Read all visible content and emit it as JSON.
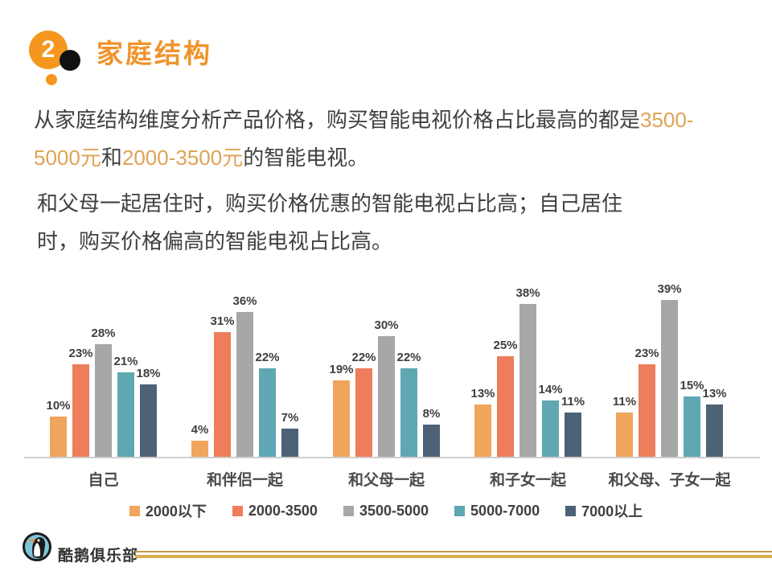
{
  "header": {
    "number": "2",
    "title": "家庭结构"
  },
  "paragraphs": {
    "p1_pre": "从家庭结构维度分析产品价格，购买智能电视价格占比最高的都是",
    "p1_highlight1": "3500-5000元",
    "p1_mid": "和",
    "p1_highlight2": "2000-3500元",
    "p1_post": "的智能电视。",
    "p2": "和父母一起居住时，购买价格优惠的智能电视占比高；自己居住时，购买价格偏高的智能电视占比高。"
  },
  "chart_data": {
    "type": "bar",
    "categories": [
      "自己",
      "和伴侣一起",
      "和父母一起",
      "和子女一起",
      "和父母、子女一起"
    ],
    "series": [
      {
        "name": "2000以下",
        "color": "#EFA55C",
        "values": [
          10,
          4,
          19,
          13,
          11
        ]
      },
      {
        "name": "2000-3500",
        "color": "#ED7D5B",
        "values": [
          23,
          31,
          22,
          25,
          23
        ]
      },
      {
        "name": "3500-5000",
        "color": "#A7A7A7",
        "values": [
          28,
          36,
          30,
          38,
          39
        ]
      },
      {
        "name": "5000-7000",
        "color": "#5FA7B2",
        "values": [
          21,
          22,
          22,
          14,
          15
        ]
      },
      {
        "name": "7000以上",
        "color": "#4D6277",
        "values": [
          18,
          7,
          8,
          11,
          13
        ]
      }
    ],
    "value_suffix": "%",
    "ylim": [
      0,
      40
    ],
    "grid": false,
    "legend_position": "bottom",
    "title": "",
    "xlabel": "",
    "ylabel": ""
  },
  "footer": {
    "brand": "酷鹅俱乐部"
  },
  "colors": {
    "accent_orange": "#F5971E",
    "title_orange": "#F0932C",
    "body_text": "#404040",
    "highlight_text": "#DFA355",
    "baseline": "#CFCFCF",
    "footer_line_thin": "#C49A43",
    "footer_line_thick": "#D9AC52"
  }
}
